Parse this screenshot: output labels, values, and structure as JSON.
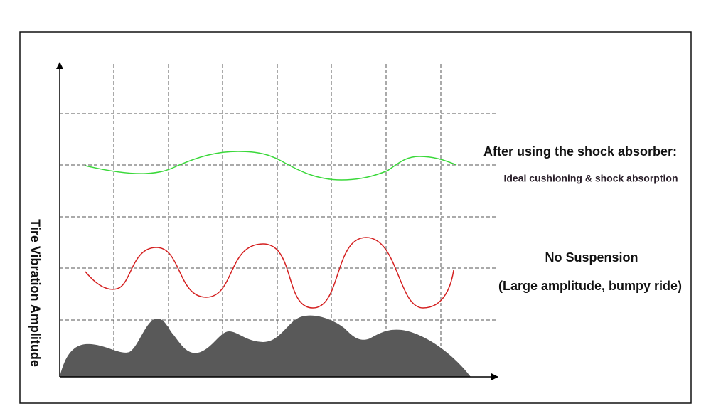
{
  "y_axis_label": "Tire Vibration Amplitude",
  "labels": {
    "shock_absorber_title": "After using the shock absorber:",
    "shock_absorber_note": "Ideal cushioning & shock absorption",
    "no_suspension_title": "No Suspension",
    "no_suspension_note": "(Large amplitude, bumpy ride)"
  }
}
